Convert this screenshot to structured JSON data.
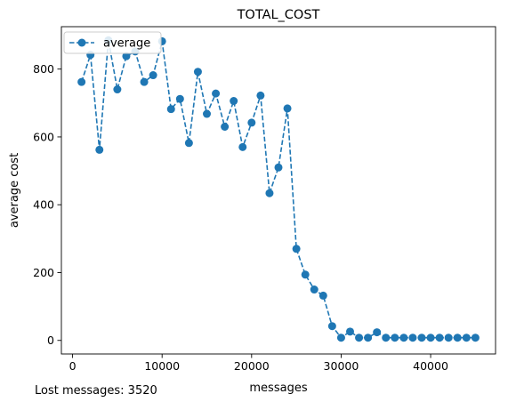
{
  "chart_data": {
    "type": "line",
    "title": "TOTAL_COST",
    "xlabel": "messages",
    "ylabel": "average cost",
    "xlim": [
      -1250,
      47250
    ],
    "ylim": [
      -40,
      925
    ],
    "xticks": [
      0,
      10000,
      20000,
      30000,
      40000
    ],
    "yticks": [
      0,
      200,
      400,
      600,
      800
    ],
    "grid": false,
    "legend_position": "top-left",
    "series": [
      {
        "name": "average",
        "color": "#1f77b4",
        "line_style": "dashed",
        "marker": "circle",
        "x": [
          1000,
          2000,
          3000,
          4000,
          5000,
          6000,
          7000,
          8000,
          9000,
          10000,
          11000,
          12000,
          13000,
          14000,
          15000,
          16000,
          17000,
          18000,
          19000,
          20000,
          21000,
          22000,
          23000,
          24000,
          25000,
          26000,
          27000,
          28000,
          29000,
          30000,
          31000,
          32000,
          33000,
          34000,
          35000,
          36000,
          37000,
          38000,
          39000,
          40000,
          41000,
          42000,
          43000,
          44000,
          45000
        ],
        "y": [
          762,
          842,
          562,
          885,
          740,
          838,
          852,
          762,
          782,
          882,
          682,
          712,
          582,
          792,
          668,
          728,
          630,
          706,
          570,
          642,
          722,
          434,
          510,
          684,
          270,
          194,
          150,
          132,
          42,
          8,
          26,
          8,
          8,
          24,
          8,
          8,
          8,
          8,
          8,
          8,
          8,
          8,
          8,
          8,
          8
        ]
      }
    ]
  },
  "footer": {
    "lost_messages": "Lost messages: 3520"
  }
}
